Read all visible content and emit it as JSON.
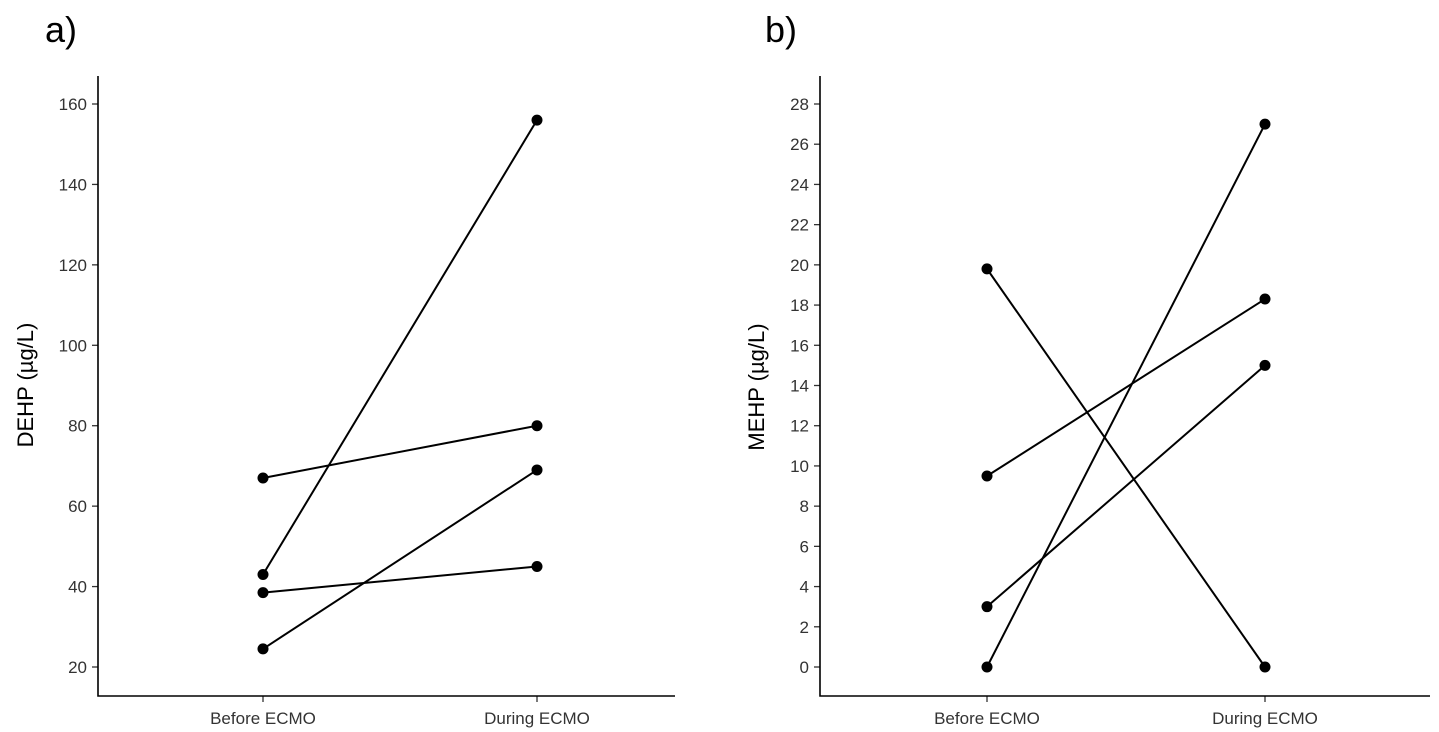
{
  "chart_data": [
    {
      "type": "line",
      "panel_label": "a)",
      "title": "",
      "xlabel": "",
      "ylabel": "DEHP (µg/L)",
      "categories": [
        "Before ECMO",
        "During ECMO"
      ],
      "ylim": [
        20,
        160
      ],
      "yticks": [
        20,
        40,
        60,
        80,
        100,
        120,
        140,
        160
      ],
      "grid": false,
      "legend": "none",
      "series": [
        {
          "values": [
            43,
            156
          ]
        },
        {
          "values": [
            67,
            80
          ]
        },
        {
          "values": [
            38.5,
            45
          ]
        },
        {
          "values": [
            24.5,
            69
          ]
        }
      ]
    },
    {
      "type": "line",
      "panel_label": "b)",
      "title": "",
      "xlabel": "",
      "ylabel": "MEHP (µg/L)",
      "categories": [
        "Before ECMO",
        "During ECMO"
      ],
      "ylim": [
        0,
        28
      ],
      "yticks": [
        0,
        2,
        4,
        6,
        8,
        10,
        12,
        14,
        16,
        18,
        20,
        22,
        24,
        26,
        28
      ],
      "grid": false,
      "legend": "none",
      "series": [
        {
          "values": [
            19.8,
            0
          ]
        },
        {
          "values": [
            0,
            27
          ]
        },
        {
          "values": [
            9.5,
            18.3
          ]
        },
        {
          "values": [
            3,
            15
          ]
        }
      ]
    }
  ]
}
